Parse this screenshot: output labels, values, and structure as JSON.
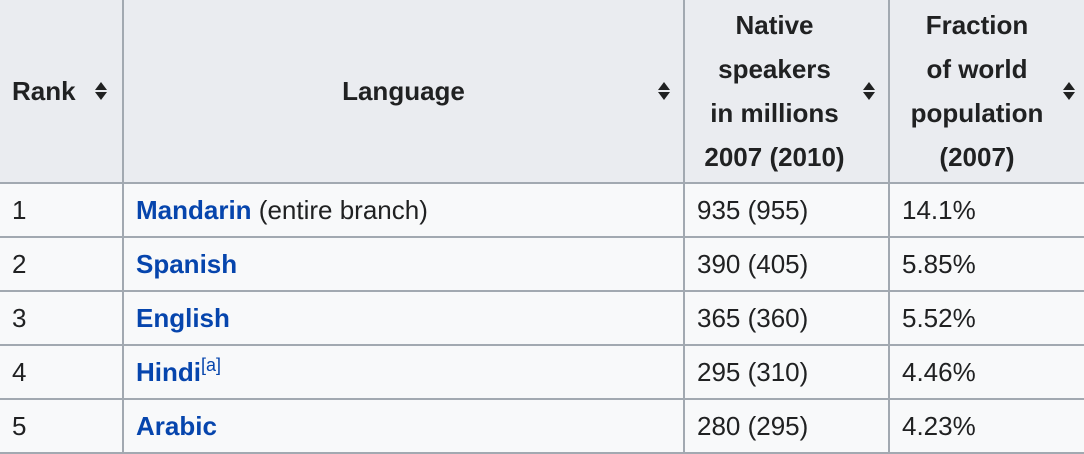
{
  "headers": [
    {
      "label": "Rank"
    },
    {
      "label": "Language"
    },
    {
      "label": "Native speakers in millions 2007 (2010)",
      "lines": [
        "Native",
        "speakers",
        "in millions",
        "2007 (2010)"
      ]
    },
    {
      "label": "Fraction of world population (2007)",
      "lines": [
        "Fraction",
        "of world",
        "population",
        "(2007)"
      ]
    }
  ],
  "rows": [
    {
      "rank": "1",
      "language": "Mandarin",
      "note": " (entire branch)",
      "sup": "",
      "speakers": "935 (955)",
      "fraction": "14.1%"
    },
    {
      "rank": "2",
      "language": "Spanish",
      "note": "",
      "sup": "",
      "speakers": "390 (405)",
      "fraction": "5.85%"
    },
    {
      "rank": "3",
      "language": "English",
      "note": "",
      "sup": "",
      "speakers": "365 (360)",
      "fraction": "5.52%"
    },
    {
      "rank": "4",
      "language": "Hindi",
      "note": "",
      "sup": "[a]",
      "speakers": "295 (310)",
      "fraction": "4.46%"
    },
    {
      "rank": "5",
      "language": "Arabic",
      "note": "",
      "sup": "",
      "speakers": "280 (295)",
      "fraction": "4.23%"
    }
  ],
  "colors": {
    "header_bg": "#eaecf0",
    "cell_bg": "#f8f9fa",
    "border": "#a2a9b1",
    "link": "#0645ad"
  },
  "icons": {
    "sort": "sort-up-down-icon"
  }
}
